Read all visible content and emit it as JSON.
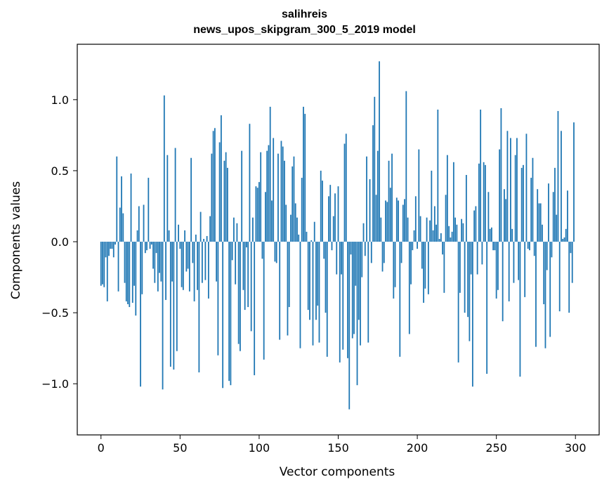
{
  "chart_data": {
    "type": "bar",
    "title": "salihreis",
    "subtitle": "news_upos_skipgram_300_5_2019 model",
    "xlabel": "Vector components",
    "ylabel": "Components values",
    "xlim": [
      -15,
      315
    ],
    "ylim": [
      -1.36,
      1.39
    ],
    "xticks": [
      0,
      50,
      100,
      150,
      200,
      250,
      300
    ],
    "yticks": [
      -1.0,
      -0.5,
      0.0,
      0.5,
      1.0
    ],
    "ytick_labels": [
      "−1.0",
      "−0.5",
      "0.0",
      "0.5",
      "1.0"
    ],
    "bar_color": "#1f77b4",
    "grid": false,
    "x_start": 0,
    "values": [
      -0.31,
      -0.3,
      -0.32,
      -0.11,
      -0.42,
      -0.1,
      -0.05,
      -0.05,
      -0.11,
      -0.02,
      0.6,
      -0.35,
      0.24,
      0.46,
      0.2,
      -0.29,
      -0.42,
      -0.44,
      -0.46,
      0.48,
      -0.43,
      -0.31,
      -0.52,
      0.08,
      0.25,
      -1.02,
      -0.37,
      0.26,
      -0.08,
      -0.06,
      0.45,
      -0.05,
      -0.02,
      -0.19,
      -0.29,
      -0.08,
      -0.35,
      -0.22,
      -0.28,
      -1.04,
      1.03,
      -0.41,
      0.61,
      0.08,
      -0.88,
      -0.28,
      -0.9,
      0.66,
      -0.77,
      0.12,
      -0.05,
      -0.32,
      -0.34,
      0.08,
      -0.21,
      -0.19,
      -0.35,
      0.59,
      -0.15,
      -0.42,
      0.05,
      -0.34,
      -0.92,
      0.21,
      -0.29,
      0.02,
      -0.27,
      0.04,
      -0.4,
      0.18,
      0.62,
      0.78,
      0.8,
      -0.28,
      -0.8,
      0.7,
      0.89,
      -1.03,
      0.57,
      0.63,
      0.52,
      -0.98,
      -1.01,
      -0.13,
      0.17,
      -0.3,
      0.13,
      -0.72,
      -0.77,
      0.64,
      -0.34,
      -0.48,
      -0.04,
      -0.46,
      0.83,
      -0.63,
      0.17,
      -0.94,
      0.39,
      0.38,
      0.42,
      0.63,
      -0.12,
      -0.83,
      0.35,
      0.64,
      0.68,
      0.95,
      0.29,
      0.73,
      -0.14,
      -0.15,
      0.62,
      -0.69,
      0.71,
      0.67,
      0.57,
      0.26,
      -0.66,
      -0.46,
      0.19,
      0.53,
      0.6,
      0.27,
      0.17,
      0.05,
      -0.75,
      0.45,
      0.95,
      0.9,
      0.07,
      -0.48,
      -0.55,
      0.01,
      -0.73,
      0.14,
      -0.55,
      -0.45,
      -0.71,
      0.5,
      0.43,
      -0.12,
      -0.5,
      -0.81,
      0.32,
      0.4,
      -0.06,
      0.18,
      0.34,
      -0.23,
      0.39,
      -0.85,
      -0.23,
      -0.76,
      0.69,
      0.76,
      -0.82,
      -1.18,
      -0.09,
      -0.68,
      -0.65,
      -0.31,
      -1.01,
      -0.55,
      -0.73,
      -0.25,
      0.13,
      -0.1,
      0.6,
      -0.71,
      0.44,
      -0.15,
      0.82,
      1.02,
      0.33,
      0.64,
      1.27,
      0.17,
      -0.21,
      -0.15,
      0.29,
      0.28,
      0.57,
      0.38,
      0.62,
      -0.4,
      -0.32,
      0.31,
      0.29,
      -0.81,
      -0.15,
      0.26,
      0.3,
      1.06,
      0.17,
      -0.65,
      -0.3,
      -0.06,
      0.08,
      0.32,
      -0.05,
      0.65,
      0.18,
      -0.19,
      -0.43,
      -0.33,
      0.17,
      -0.37,
      0.15,
      0.5,
      0.08,
      0.25,
      0.12,
      0.93,
      0.02,
      0.06,
      -0.09,
      -0.36,
      0.33,
      0.61,
      0.11,
      0.03,
      0.07,
      0.56,
      0.17,
      0.12,
      -0.85,
      -0.36,
      0.16,
      0.13,
      -0.5,
      0.47,
      -0.53,
      -0.7,
      -0.23,
      -1.02,
      0.22,
      0.25,
      -0.23,
      0.55,
      0.93,
      -0.16,
      0.56,
      0.54,
      -0.93,
      0.35,
      0.09,
      0.1,
      -0.06,
      -0.06,
      -0.4,
      -0.34,
      0.65,
      0.94,
      -0.56,
      0.37,
      0.3,
      0.78,
      -0.42,
      0.73,
      0.09,
      -0.29,
      0.61,
      0.73,
      -0.27,
      -0.95,
      0.52,
      0.54,
      -0.39,
      0.76,
      -0.05,
      -0.06,
      0.45,
      0.59,
      -0.1,
      -0.74,
      0.37,
      0.27,
      0.27,
      0.12,
      -0.44,
      -0.75,
      -0.2,
      0.41,
      -0.67,
      -0.11,
      0.35,
      0.52,
      0.19,
      0.92,
      -0.49,
      0.78,
      0.02,
      0.03,
      0.09,
      0.36,
      -0.5,
      -0.08,
      -0.29,
      0.84
    ]
  }
}
